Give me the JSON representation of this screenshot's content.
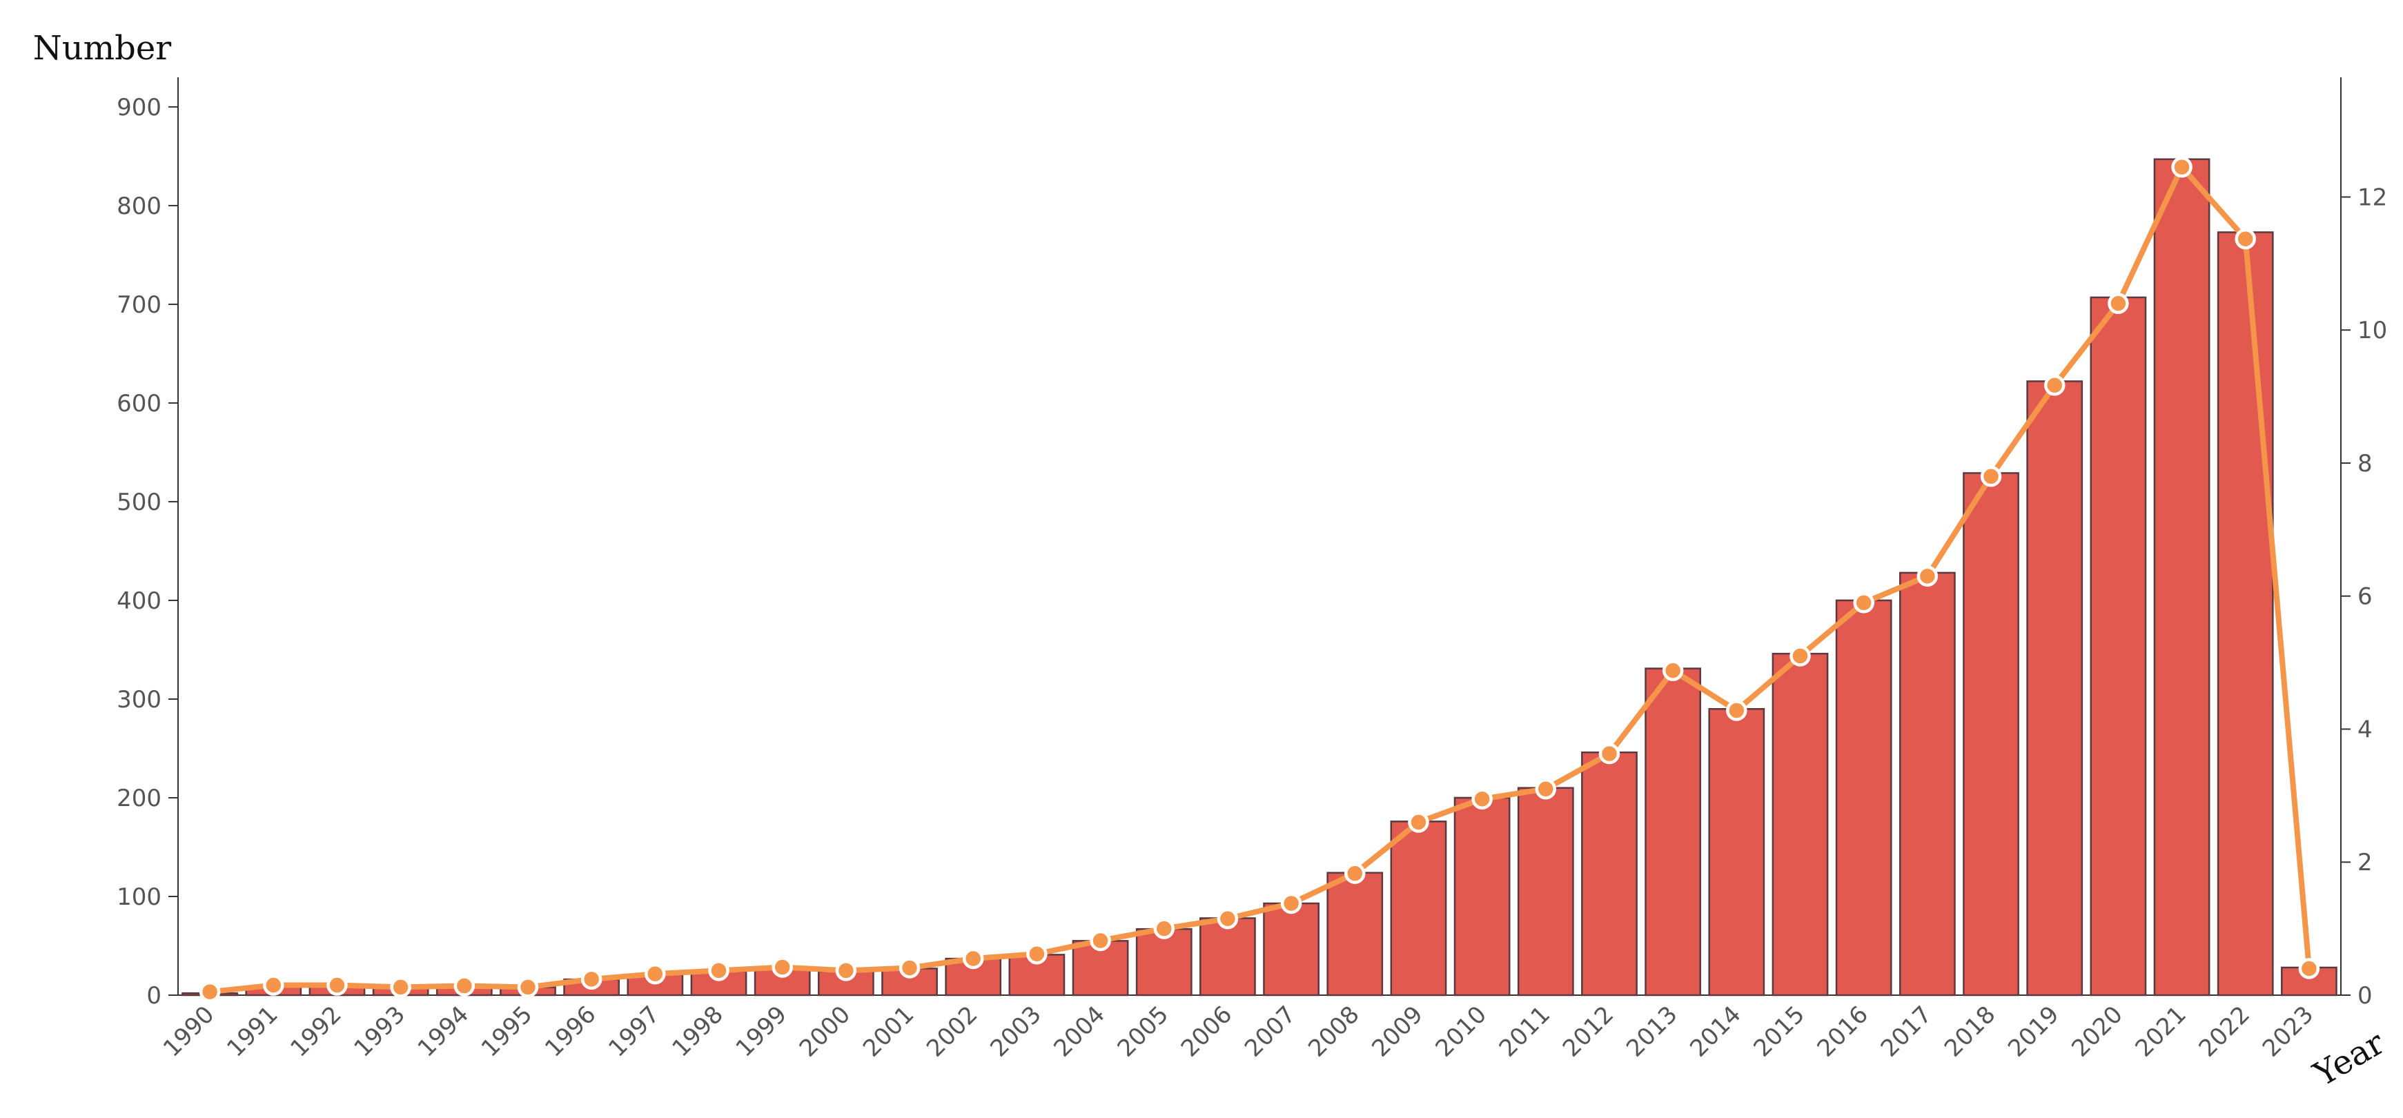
{
  "chart_data": {
    "type": "bar",
    "title": "",
    "ylabel": "Number",
    "xlabel": "Year",
    "ylim": [
      0,
      930
    ],
    "yticks": [
      0,
      100,
      200,
      300,
      400,
      500,
      600,
      700,
      800,
      900
    ],
    "y2lim": [
      0,
      13.8
    ],
    "y2ticks": [
      0,
      2,
      4,
      6,
      8,
      10,
      12
    ],
    "grid": false,
    "categories": [
      "1990",
      "1991",
      "1992",
      "1993",
      "1994",
      "1995",
      "1996",
      "1997",
      "1998",
      "1999",
      "2000",
      "2001",
      "2002",
      "2003",
      "2004",
      "2005",
      "2006",
      "2007",
      "2008",
      "2009",
      "2010",
      "2011",
      "2012",
      "2013",
      "2014",
      "2015",
      "2016",
      "2017",
      "2018",
      "2019",
      "2020",
      "2021",
      "2022",
      "2023"
    ],
    "series": [
      {
        "type": "bar",
        "axis": "left",
        "values": [
          2,
          9,
          10,
          8,
          9,
          8,
          16,
          21,
          24,
          28,
          24,
          27,
          37,
          41,
          55,
          67,
          78,
          93,
          124,
          176,
          200,
          210,
          246,
          331,
          290,
          346,
          400,
          428,
          529,
          622,
          707,
          847,
          773,
          28
        ]
      },
      {
        "type": "line",
        "axis": "right",
        "values": [
          0.05,
          0.15,
          0.15,
          0.12,
          0.14,
          0.12,
          0.24,
          0.32,
          0.37,
          0.42,
          0.37,
          0.41,
          0.55,
          0.62,
          0.82,
          1.0,
          1.15,
          1.38,
          1.83,
          2.6,
          2.95,
          3.1,
          3.63,
          4.88,
          4.28,
          5.1,
          5.9,
          6.3,
          7.8,
          9.17,
          10.4,
          12.45,
          11.37,
          0.4
        ]
      }
    ],
    "colors": {
      "bar_fill": "#e25950",
      "bar_stroke": "#5a3a3f",
      "line": "#f5954a",
      "marker_fill": "#f5954a",
      "marker_stroke": "#ffffff",
      "axis": "#333333",
      "tick_text": "#555555"
    }
  }
}
